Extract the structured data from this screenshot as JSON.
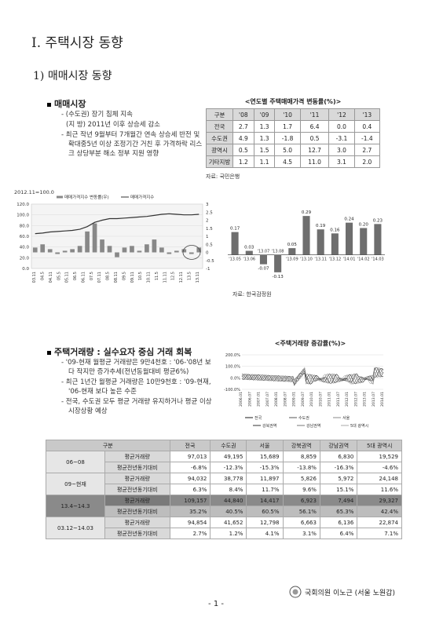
{
  "heading1": "Ⅰ. 주택시장 동향",
  "heading2": "1) 매매시장 동향",
  "section1": {
    "title": "매매시장",
    "bullets": [
      "(수도권) 장기 침체 지속",
      "(지 방) 2011년 이후 상승세 감소",
      "최근 작년 9월부터 7개월간 연속 상승세 반전 및 확대중5년 이상 조정기간 거친 후 가격하락 리스크 상당부분 해소 정부 지원 영향"
    ]
  },
  "table1": {
    "title": "<연도별 주택매매가격 변동률(%)>",
    "headers": [
      "구분",
      "'08",
      "'09",
      "'10",
      "'11",
      "'12",
      "'13"
    ],
    "rows": [
      {
        "label": "전국",
        "values": [
          "2.7",
          "1.3",
          "1.7",
          "6.4",
          "0.0",
          "0.4"
        ]
      },
      {
        "label": "수도권",
        "values": [
          "4.9",
          "1.3",
          "-1.8",
          "0.5",
          "-3.1",
          "-1.4"
        ]
      },
      {
        "label": "광역시",
        "values": [
          "0.5",
          "1.5",
          "5.0",
          "12.7",
          "3.0",
          "2.7"
        ]
      },
      {
        "label": "기타지방",
        "values": [
          "1.2",
          "1.1",
          "4.5",
          "11.0",
          "3.1",
          "2.0"
        ]
      }
    ],
    "source": "자료: 국민은행"
  },
  "chart_data": [
    {
      "type": "line",
      "title": "2012.11=100.0",
      "legend": [
        "매매가격지수 변동률(우)",
        "매매가격지수"
      ],
      "y_left_ticks": [
        "120.0",
        "100.0",
        "80.0",
        "60.0",
        "40.0",
        "20.0",
        "0.0"
      ],
      "y_right_ticks": [
        "3",
        "2.5",
        "2",
        "1.5",
        "1",
        "0.5",
        "0",
        "-0.5",
        "-1"
      ],
      "x_ticks": [
        "03.11",
        "04.5",
        "04.11",
        "05.5",
        "05.11",
        "06.5",
        "06.11",
        "07.5",
        "07.11",
        "08.5",
        "08.11",
        "09.5",
        "09.11",
        "10.5",
        "10.11",
        "11.5",
        "11.11",
        "12.5",
        "12.11",
        "13.5",
        "13.11"
      ],
      "index_series": [
        65,
        66,
        68,
        69,
        70,
        71,
        73,
        78,
        86,
        90,
        93,
        93,
        94,
        95,
        96,
        97,
        99,
        101,
        102,
        101,
        100,
        100,
        101
      ],
      "bar_series": [
        0.3,
        0.5,
        0.2,
        -0.1,
        0.1,
        0.2,
        0.4,
        1.3,
        1.8,
        0.8,
        0.4,
        -0.3,
        0.3,
        0.4,
        0.1,
        0.5,
        0.8,
        0.3,
        -0.1,
        0.1,
        0.2,
        -0.1,
        0.3
      ]
    },
    {
      "type": "bar",
      "categories": [
        "'13.05",
        "'13.06",
        "'13.07",
        "'13.08",
        "'13.09",
        "'13.10",
        "'13.11",
        "'13.12",
        "'14.01",
        "'14.02",
        "'14.03"
      ],
      "values": [
        0.17,
        0.03,
        -0.07,
        -0.13,
        0.05,
        0.29,
        0.19,
        0.16,
        0.24,
        0.2,
        0.23
      ],
      "source": "자료: 한국감정원"
    },
    {
      "type": "line",
      "title": "<주택거래량 증감률(%)>",
      "y_ticks": [
        "200.0%",
        "100.0%",
        "0.0%",
        "-100.0%"
      ],
      "x_ticks": [
        "2006.01",
        "2006.07",
        "2007.01",
        "2007.07",
        "2008.01",
        "2008.07",
        "2009.01",
        "2009.07",
        "2010.01",
        "2010.07",
        "2011.01",
        "2011.07",
        "2012.01",
        "2012.07",
        "2013.01",
        "2013.07",
        "2014.01"
      ],
      "series": [
        {
          "name": "전국",
          "color": "#1a1a1a"
        },
        {
          "name": "수도권",
          "color": "#555555"
        },
        {
          "name": "서울",
          "color": "#888888"
        },
        {
          "name": "강북권역",
          "color": "#333333"
        },
        {
          "name": "강남권역",
          "color": "#777777"
        },
        {
          "name": "5대 광역시",
          "color": "#aaaaaa"
        }
      ]
    }
  ],
  "section2": {
    "title": "주택거래량 : 실수요자 중심 거래 회복",
    "bullets": [
      "'09-현재 월평균 거래량은 9만4천호 : '06-'08년 보다 작지만 증가추세(전년동월대비 평균6%)",
      "최근 1년간 월평균 거래량은 10만9천호 : '09-현재, '06-현재 보다 높은 수준",
      "전국, 수도권 모두 평균 거래량 유지하거나 평균 이상 시장상황 예상"
    ]
  },
  "table2": {
    "headers": [
      "구분",
      "",
      "전국",
      "수도권",
      "서울",
      "강북권역",
      "강남권역",
      "5대 광역시"
    ],
    "groups": [
      {
        "period": "06~08",
        "rows": [
          {
            "label": "평균거래량",
            "values": [
              "97,013",
              "49,195",
              "15,689",
              "8,859",
              "6,830",
              "19,529"
            ]
          },
          {
            "label": "평균전년동기대비",
            "values": [
              "-6.8%",
              "-12.3%",
              "-15.3%",
              "-13.8%",
              "-16.3%",
              "-4.6%"
            ]
          }
        ]
      },
      {
        "period": "09~현재",
        "rows": [
          {
            "label": "평균거래량",
            "values": [
              "94,032",
              "38,778",
              "11,897",
              "5,826",
              "5,972",
              "24,148"
            ]
          },
          {
            "label": "평균전년동기대비",
            "values": [
              "6.3%",
              "8.4%",
              "11.7%",
              "9.6%",
              "15.1%",
              "11.6%"
            ]
          }
        ]
      },
      {
        "period": "13.4~14.3",
        "rows": [
          {
            "label": "평균거래량",
            "values": [
              "109,157",
              "44,840",
              "14,417",
              "6,923",
              "7,494",
              "29,327"
            ]
          },
          {
            "label": "평균전년동기대비",
            "values": [
              "35.2%",
              "40.5%",
              "60.5%",
              "56.1%",
              "65.3%",
              "42.4%"
            ]
          }
        ]
      },
      {
        "period": "03.12~14.03",
        "rows": [
          {
            "label": "평균거래량",
            "values": [
              "94,854",
              "41,652",
              "12,798",
              "6,663",
              "6,136",
              "22,874"
            ]
          },
          {
            "label": "평균전년동기대비",
            "values": [
              "2.7%",
              "1.2%",
              "4.1%",
              "3.1%",
              "6.4%",
              "7.1%"
            ]
          }
        ]
      }
    ]
  },
  "footer": {
    "author": "국회의원 이노근 (서울 노원갑)",
    "page": "- 1 -"
  }
}
